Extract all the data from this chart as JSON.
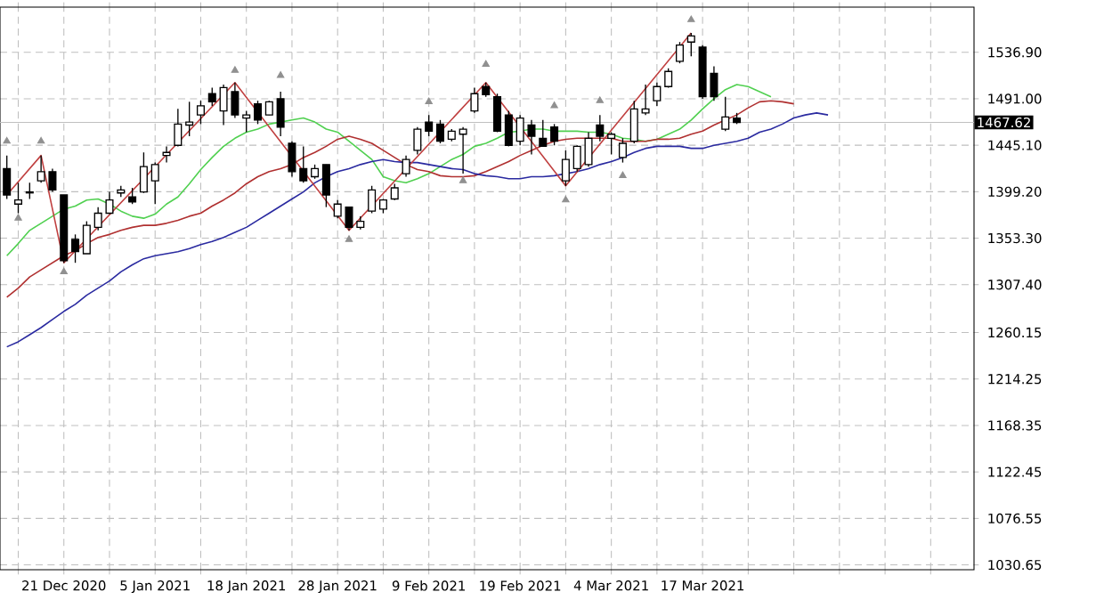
{
  "chart_data": {
    "type": "candlestick",
    "categories": [
      null,
      null,
      null,
      null,
      null,
      "21 Dec 2020",
      null,
      null,
      null,
      null,
      null,
      null,
      null,
      "5 Jan 2021",
      null,
      null,
      null,
      null,
      null,
      null,
      null,
      "18 Jan 2021",
      null,
      null,
      null,
      null,
      null,
      null,
      null,
      "28 Jan 2021",
      null,
      null,
      null,
      null,
      null,
      null,
      null,
      "9 Feb 2021",
      null,
      null,
      null,
      null,
      null,
      null,
      null,
      "19 Feb 2021",
      null,
      null,
      null,
      null,
      null,
      null,
      null,
      "4 Mar 2021",
      null,
      null,
      null,
      null,
      null,
      null,
      null,
      "17 Mar 2021",
      null,
      null,
      null,
      null,
      null,
      null,
      null,
      null,
      null,
      null,
      null,
      null,
      null,
      null,
      null,
      null,
      null,
      null,
      null,
      null,
      null,
      null,
      null
    ],
    "ohlc": [
      [
        1422,
        1435,
        1392,
        1396
      ],
      [
        1387,
        1408,
        1378,
        1391
      ],
      [
        1398,
        1408,
        1392,
        1399
      ],
      [
        1410,
        1435,
        1408,
        1419
      ],
      [
        1419,
        1422,
        1399,
        1401
      ],
      [
        1396,
        1396,
        1329,
        1331
      ],
      [
        1352,
        1357,
        1329,
        1340
      ],
      [
        1338,
        1370,
        1338,
        1366
      ],
      [
        1364,
        1384,
        1361,
        1378
      ],
      [
        1378,
        1399,
        1377,
        1391
      ],
      [
        1398,
        1405,
        1394,
        1401
      ],
      [
        1394,
        1403,
        1387,
        1389
      ],
      [
        1399,
        1438,
        1398,
        1424
      ],
      [
        1410,
        1428,
        1387,
        1426
      ],
      [
        1435,
        1444,
        1428,
        1438
      ],
      [
        1445,
        1481,
        1444,
        1466
      ],
      [
        1465,
        1488,
        1454,
        1468
      ],
      [
        1475,
        1489,
        1466,
        1484
      ],
      [
        1496,
        1502,
        1484,
        1488
      ],
      [
        1479,
        1505,
        1465,
        1502
      ],
      [
        1498,
        1507,
        1472,
        1475
      ],
      [
        1472,
        1479,
        1458,
        1475
      ],
      [
        1486,
        1489,
        1466,
        1470
      ],
      [
        1475,
        1489,
        1475,
        1488
      ],
      [
        1491,
        1498,
        1454,
        1463
      ],
      [
        1447,
        1449,
        1414,
        1419
      ],
      [
        1422,
        1444,
        1408,
        1410
      ],
      [
        1414,
        1426,
        1412,
        1422
      ],
      [
        1426,
        1426,
        1384,
        1396
      ],
      [
        1375,
        1391,
        1373,
        1387
      ],
      [
        1384,
        1384,
        1361,
        1364
      ],
      [
        1364,
        1375,
        1362,
        1370
      ],
      [
        1380,
        1405,
        1378,
        1401
      ],
      [
        1382,
        1392,
        1378,
        1391
      ],
      [
        1392,
        1407,
        1391,
        1403
      ],
      [
        1417,
        1435,
        1414,
        1431
      ],
      [
        1440,
        1463,
        1436,
        1461
      ],
      [
        1468,
        1475,
        1454,
        1459
      ],
      [
        1466,
        1470,
        1447,
        1449
      ],
      [
        1451,
        1461,
        1449,
        1459
      ],
      [
        1456,
        1463,
        1417,
        1461
      ],
      [
        1479,
        1502,
        1477,
        1496
      ],
      [
        1503,
        1507,
        1493,
        1495
      ],
      [
        1493,
        1496,
        1458,
        1459
      ],
      [
        1475,
        1479,
        1444,
        1445
      ],
      [
        1449,
        1475,
        1445,
        1472
      ],
      [
        1465,
        1470,
        1436,
        1454
      ],
      [
        1452,
        1470,
        1444,
        1444
      ],
      [
        1463,
        1466,
        1445,
        1449
      ],
      [
        1410,
        1440,
        1405,
        1431
      ],
      [
        1422,
        1445,
        1419,
        1444
      ],
      [
        1426,
        1458,
        1424,
        1452
      ],
      [
        1465,
        1475,
        1449,
        1454
      ],
      [
        1452,
        1458,
        1436,
        1456
      ],
      [
        1433,
        1452,
        1428,
        1447
      ],
      [
        1449,
        1489,
        1447,
        1481
      ],
      [
        1477,
        1505,
        1475,
        1481
      ],
      [
        1489,
        1507,
        1484,
        1503
      ],
      [
        1503,
        1521,
        1502,
        1518
      ],
      [
        1528,
        1547,
        1526,
        1544
      ],
      [
        1547,
        1556,
        1533,
        1553
      ],
      [
        1542,
        1544,
        1491,
        1493
      ],
      [
        1516,
        1523,
        1489,
        1493
      ],
      [
        1461,
        1493,
        1459,
        1473
      ],
      [
        1472,
        1477,
        1466,
        1467.62
      ],
      null,
      null,
      null,
      null,
      null,
      null,
      null,
      null,
      null,
      null,
      null,
      null,
      null,
      null,
      null,
      null,
      null,
      null,
      null,
      null
    ],
    "series": [
      {
        "type": "line",
        "color": "#50d050",
        "values": [
          1336,
          1348,
          1361,
          1368,
          1375,
          1382,
          1385,
          1391,
          1392,
          1387,
          1380,
          1375,
          1373,
          1377,
          1387,
          1394,
          1407,
          1421,
          1433,
          1444,
          1452,
          1458,
          1461,
          1466,
          1468,
          1470,
          1472,
          1468,
          1461,
          1458,
          1449,
          1440,
          1431,
          1414,
          1410,
          1408,
          1412,
          1417,
          1424,
          1431,
          1436,
          1444,
          1447,
          1452,
          1458,
          1459,
          1461,
          1461,
          1459,
          1459,
          1459,
          1458,
          1458,
          1456,
          1452,
          1451,
          1449,
          1451,
          1456,
          1461,
          1470,
          1481,
          1491,
          1500,
          1505,
          1503,
          1498,
          1493,
          null,
          null,
          null,
          null,
          null,
          null,
          null,
          null,
          null,
          null,
          null,
          null,
          null,
          null,
          null,
          null,
          null
        ]
      },
      {
        "type": "line",
        "color": "#b03030",
        "values": [
          1295,
          1304,
          1315,
          1322,
          1329,
          1336,
          1341,
          1348,
          1354,
          1357,
          1361,
          1364,
          1366,
          1366,
          1368,
          1371,
          1375,
          1378,
          1385,
          1391,
          1398,
          1407,
          1414,
          1419,
          1422,
          1426,
          1433,
          1438,
          1444,
          1451,
          1454,
          1451,
          1447,
          1440,
          1433,
          1426,
          1421,
          1419,
          1415,
          1414,
          1414,
          1415,
          1419,
          1424,
          1429,
          1435,
          1440,
          1445,
          1449,
          1451,
          1452,
          1452,
          1452,
          1452,
          1449,
          1449,
          1449,
          1451,
          1451,
          1452,
          1456,
          1459,
          1465,
          1470,
          1475,
          1482,
          1488,
          1489,
          1488,
          1486,
          null,
          null,
          null,
          null,
          null,
          null,
          null,
          null,
          null,
          null,
          null,
          null,
          null,
          null,
          null
        ]
      },
      {
        "type": "line",
        "color": "#2a2aa0",
        "values": [
          1246,
          1251,
          1258,
          1265,
          1273,
          1281,
          1288,
          1297,
          1304,
          1311,
          1320,
          1327,
          1333,
          1336,
          1338,
          1340,
          1343,
          1347,
          1350,
          1354,
          1359,
          1364,
          1371,
          1378,
          1385,
          1392,
          1399,
          1408,
          1414,
          1419,
          1422,
          1426,
          1429,
          1431,
          1429,
          1428,
          1428,
          1426,
          1424,
          1422,
          1421,
          1417,
          1415,
          1414,
          1412,
          1412,
          1414,
          1414,
          1415,
          1417,
          1419,
          1422,
          1426,
          1429,
          1433,
          1438,
          1442,
          1444,
          1444,
          1444,
          1442,
          1442,
          1445,
          1447,
          1449,
          1452,
          1458,
          1461,
          1466,
          1472,
          1475,
          1477,
          1475,
          null,
          null,
          null,
          null,
          null,
          null,
          null,
          null,
          null,
          null,
          null,
          null
        ]
      },
      {
        "type": "line",
        "color": "#c04040",
        "values": [
          1396,
          null,
          null,
          1435,
          null,
          1329,
          null,
          null,
          null,
          null,
          null,
          null,
          null,
          null,
          null,
          null,
          null,
          null,
          null,
          null,
          1507,
          null,
          null,
          null,
          null,
          null,
          null,
          null,
          null,
          null,
          1361,
          null,
          null,
          null,
          null,
          null,
          null,
          null,
          null,
          null,
          null,
          null,
          1507,
          null,
          null,
          null,
          null,
          null,
          null,
          1405,
          null,
          null,
          null,
          null,
          null,
          null,
          null,
          null,
          null,
          null,
          1556,
          null,
          null,
          null,
          null,
          null,
          null,
          null,
          null,
          null,
          null,
          null,
          null,
          null,
          null,
          null,
          null,
          null,
          null,
          null,
          null,
          null,
          null,
          null,
          null
        ]
      },
      {
        "type": "scatter",
        "color": "#909090",
        "marker": "triangle",
        "values": [
          1449,
          null,
          null,
          1449,
          null,
          null,
          null,
          null,
          null,
          null,
          null,
          null,
          null,
          null,
          null,
          null,
          null,
          null,
          null,
          null,
          1519,
          null,
          null,
          null,
          1514,
          null,
          null,
          null,
          null,
          null,
          null,
          null,
          null,
          null,
          null,
          null,
          null,
          1488,
          null,
          null,
          null,
          null,
          1525,
          null,
          null,
          null,
          null,
          null,
          1484,
          null,
          null,
          null,
          1489,
          null,
          null,
          null,
          null,
          null,
          null,
          null,
          1569,
          null,
          null,
          null,
          null,
          null,
          null,
          null,
          null,
          null,
          null,
          null,
          null,
          null,
          null,
          null,
          null,
          null,
          null,
          null,
          null,
          null,
          null,
          null,
          null
        ]
      },
      {
        "type": "scatter",
        "color": "#909090",
        "marker": "triangle",
        "values": [
          null,
          1373,
          null,
          null,
          null,
          1320,
          null,
          null,
          null,
          null,
          null,
          null,
          null,
          null,
          null,
          null,
          null,
          null,
          null,
          null,
          null,
          null,
          null,
          null,
          null,
          null,
          null,
          null,
          null,
          null,
          1352,
          null,
          null,
          null,
          null,
          null,
          null,
          null,
          null,
          null,
          1410,
          null,
          null,
          null,
          null,
          null,
          null,
          null,
          null,
          1391,
          null,
          null,
          null,
          null,
          1415,
          null,
          null,
          null,
          null,
          null,
          null,
          null,
          null,
          null,
          null,
          null,
          null,
          null,
          null,
          null,
          null,
          null,
          null,
          null,
          null,
          null,
          null,
          null,
          null,
          null,
          null,
          null,
          null,
          null,
          null
        ]
      }
    ],
    "ylim": [
      1025.9,
      1581.5
    ],
    "yticks": [
      {
        "value": 1030.65,
        "label": "1030.65"
      },
      {
        "value": 1076.55,
        "label": "1076.55"
      },
      {
        "value": 1122.45,
        "label": "1122.45"
      },
      {
        "value": 1168.35,
        "label": "1168.35"
      },
      {
        "value": 1214.25,
        "label": "1214.25"
      },
      {
        "value": 1260.15,
        "label": "1260.15"
      },
      {
        "value": 1307.4,
        "label": "1307.40"
      },
      {
        "value": 1353.3,
        "label": "1353.30"
      },
      {
        "value": 1399.2,
        "label": "1399.20"
      },
      {
        "value": 1445.1,
        "label": "1445.10"
      },
      {
        "value": 1491.0,
        "label": "1491.00"
      },
      {
        "value": 1536.9,
        "label": "1536.90"
      }
    ],
    "ref_lines": [
      {
        "axis": "y",
        "value": 1467.62,
        "label": "1467.62",
        "color": "#c0c0c0"
      }
    ],
    "grid": true
  }
}
